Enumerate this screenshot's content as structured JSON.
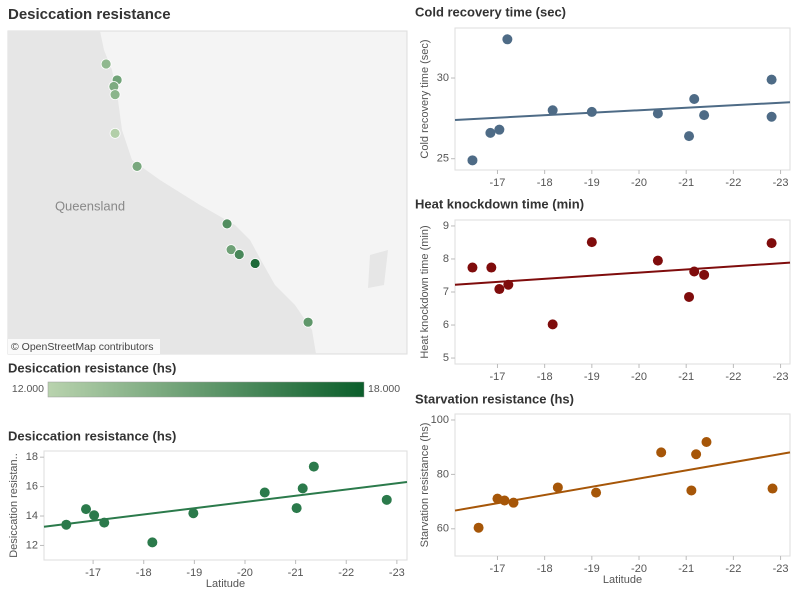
{
  "title": "Desiccation resistance",
  "map": {
    "label": "Queensland",
    "attribution": "© OpenStreetMap contributors",
    "lon": [
      145.41,
      145.68,
      145.6,
      145.63,
      145.63,
      146.17,
      148.38,
      148.48,
      148.68,
      149.07,
      150.37
    ],
    "lonlim": [
      143.0,
      152.8
    ],
    "latlim": [
      -15.66,
      -23.58
    ],
    "legend": {
      "title": "Desiccation resistance (hs)",
      "min": {
        "value": 12,
        "label": "12.000"
      },
      "max": {
        "value": 18,
        "label": "18.000"
      },
      "colors": [
        "#b9d3ae",
        "#0b5e2b"
      ]
    }
  },
  "chart_data": [
    {
      "type": "scatter",
      "title": "Cold recovery time (sec)",
      "ylabel": "Cold recovery time (sec)",
      "color": "#4e6b86",
      "trend_color": "#4e6b86",
      "x": [
        -16.47,
        -16.85,
        -17.04,
        -17.21,
        -18.17,
        -19.0,
        -20.4,
        -21.06,
        -21.17,
        -21.38,
        -22.81,
        -22.81
      ],
      "values": [
        24.9,
        26.6,
        26.8,
        32.4,
        28.0,
        27.9,
        27.8,
        26.4,
        28.7,
        27.7,
        29.9,
        27.6
      ],
      "trend": {
        "x": [
          -16.1,
          -23.2
        ],
        "values": [
          27.4,
          28.5
        ]
      },
      "xlim": [
        -16.1,
        -23.2
      ],
      "xticks": [
        -17,
        -18,
        -19,
        -20,
        -21,
        -22,
        -23
      ],
      "ylim": [
        24.3,
        33.1
      ],
      "yticks": [
        25,
        30
      ]
    },
    {
      "type": "scatter",
      "title": "Heat knockdown time (min)",
      "ylabel": "Heat knockdown time (min)",
      "color": "#7f0c0c",
      "trend_color": "#7f0c0c",
      "x": [
        -16.47,
        -16.87,
        -17.04,
        -17.23,
        -18.17,
        -19.0,
        -20.4,
        -21.06,
        -21.17,
        -21.38,
        -22.81
      ],
      "values": [
        7.74,
        7.74,
        7.09,
        7.22,
        6.02,
        8.51,
        7.95,
        6.85,
        7.62,
        7.52,
        8.48
      ],
      "trend": {
        "x": [
          -16.1,
          -23.2
        ],
        "values": [
          7.22,
          7.89
        ]
      },
      "xlim": [
        -16.1,
        -23.2
      ],
      "xticks": [
        -17,
        -18,
        -19,
        -20,
        -21,
        -22,
        -23
      ],
      "ylim": [
        4.82,
        9.18
      ],
      "yticks": [
        5,
        6,
        7,
        8,
        9
      ]
    },
    {
      "type": "scatter",
      "title": "Starvation resistance (hs)",
      "ylabel": "Starvation resistance (hs)",
      "xlabel": "Latitude",
      "color": "#a65608",
      "trend_color": "#a65608",
      "x": [
        -16.6,
        -17.0,
        -17.15,
        -17.34,
        -18.28,
        -19.09,
        -20.47,
        -21.11,
        -21.21,
        -21.43,
        -22.83
      ],
      "values": [
        60.4,
        71.1,
        70.4,
        69.6,
        75.2,
        73.3,
        88.1,
        74.1,
        87.4,
        91.9,
        74.8
      ],
      "trend": {
        "x": [
          -16.1,
          -23.2
        ],
        "values": [
          66.7,
          88.1
        ]
      },
      "xlim": [
        -16.1,
        -23.2
      ],
      "xticks": [
        -17,
        -18,
        -19,
        -20,
        -21,
        -22,
        -23
      ],
      "ylim": [
        50,
        102.2
      ],
      "yticks": [
        60,
        80,
        100
      ]
    },
    {
      "type": "scatter",
      "title": "Desiccation resistance (hs)",
      "ylabel": "Desiccation resistan..",
      "xlabel": "Latitude",
      "color": "#2b7a4b",
      "trend_color": "#2b7a4b",
      "x": [
        -16.47,
        -16.86,
        -17.02,
        -17.22,
        -18.17,
        -18.98,
        -20.39,
        -21.02,
        -21.14,
        -21.36,
        -22.8
      ],
      "values": [
        13.41,
        14.47,
        14.05,
        13.55,
        12.21,
        14.19,
        15.6,
        14.54,
        15.88,
        17.36,
        15.1
      ],
      "trend": {
        "x": [
          -16.03,
          -23.2
        ],
        "values": [
          13.27,
          16.31
        ]
      },
      "xlim": [
        -16.03,
        -23.2
      ],
      "xticks": [
        -17,
        -18,
        -19,
        -20,
        -21,
        -22,
        -23
      ],
      "ylim": [
        11.01,
        18.42
      ],
      "yticks": [
        12,
        14,
        16,
        18
      ]
    }
  ]
}
